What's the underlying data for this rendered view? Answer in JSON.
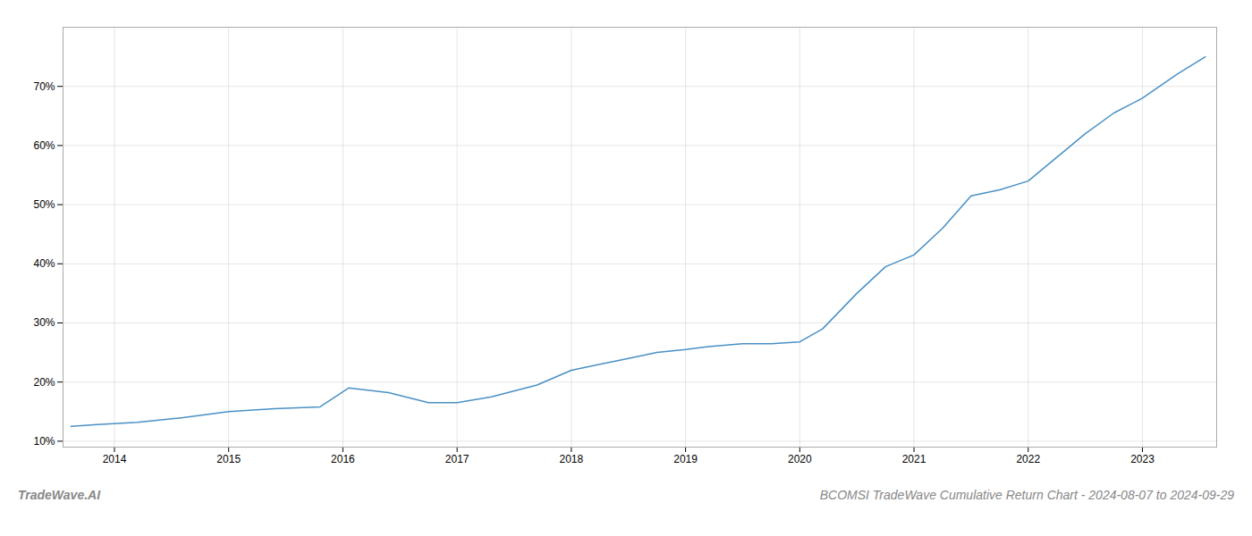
{
  "chart_data": {
    "type": "line",
    "title": "BCOMSI TradeWave Cumulative Return Chart - 2024-08-07 to 2024-09-29",
    "annotations": [
      "TradeWave.AI"
    ],
    "x": [
      2013.62,
      2013.85,
      2014.2,
      2014.6,
      2015.0,
      2015.4,
      2015.8,
      2016.05,
      2016.4,
      2016.75,
      2017.0,
      2017.3,
      2017.7,
      2018.0,
      2018.25,
      2018.5,
      2018.75,
      2019.0,
      2019.2,
      2019.5,
      2019.75,
      2020.0,
      2020.2,
      2020.5,
      2020.75,
      2021.0,
      2021.25,
      2021.5,
      2021.75,
      2022.0,
      2022.25,
      2022.5,
      2022.75,
      2023.0,
      2023.3,
      2023.55
    ],
    "values": [
      12.5,
      12.8,
      13.2,
      14.0,
      15.0,
      15.5,
      15.8,
      19.0,
      18.2,
      16.5,
      16.5,
      17.5,
      19.5,
      22.0,
      23.0,
      24.0,
      25.0,
      25.5,
      26.0,
      26.5,
      26.5,
      26.8,
      29.0,
      35.0,
      39.5,
      41.5,
      46.0,
      51.5,
      52.5,
      54.0,
      58.0,
      62.0,
      65.5,
      68.0,
      72.0,
      75.0
    ],
    "color": "#4a90c4",
    "xlim": [
      2013.55,
      2023.65
    ],
    "xticks": [
      2014,
      2015,
      2016,
      2017,
      2018,
      2019,
      2020,
      2021,
      2022,
      2023
    ],
    "ylim": [
      9,
      80
    ],
    "yticks": [
      {
        "value": 10,
        "label": "10%"
      },
      {
        "value": 20,
        "label": "20%"
      },
      {
        "value": 30,
        "label": "30%"
      },
      {
        "value": 40,
        "label": "40%"
      },
      {
        "value": 50,
        "label": "50%"
      },
      {
        "value": 60,
        "label": "60%"
      },
      {
        "value": 70,
        "label": "70%"
      }
    ],
    "grid": true
  }
}
